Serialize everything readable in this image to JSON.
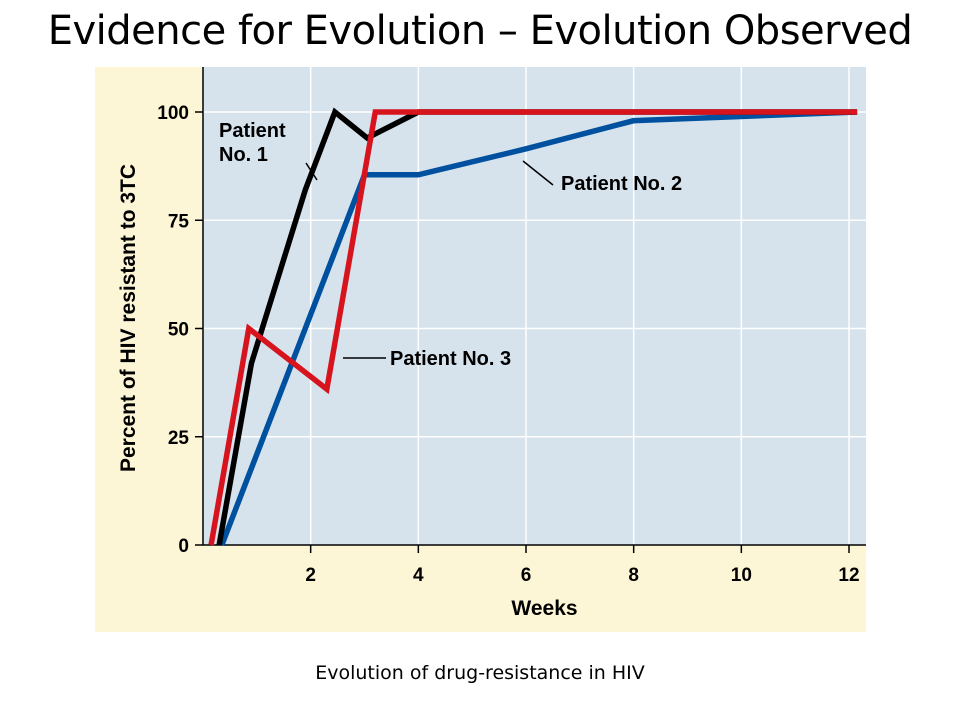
{
  "slide": {
    "title": "Evidence for Evolution – Evolution Observed",
    "caption": "Evolution of drug-resistance in HIV"
  },
  "colors": {
    "panel_bg": "#fdf6d6",
    "plot_bg": "#d6e2ec",
    "grid": "#ffffff",
    "patient1": "#000000",
    "patient2": "#0050a0",
    "patient3": "#d7141e"
  },
  "chart_data": {
    "type": "line",
    "title": "",
    "xlabel": "Weeks",
    "ylabel": "Percent of HIV resistant to 3TC",
    "xlim": [
      0,
      12.3
    ],
    "ylim": [
      0,
      108
    ],
    "xticks": [
      2,
      4,
      6,
      8,
      10,
      12
    ],
    "yticks": [
      0,
      25,
      50,
      75,
      100
    ],
    "grid": true,
    "series": [
      {
        "name": "Patient No. 1",
        "color": "#000000",
        "points": [
          [
            0.3,
            0
          ],
          [
            0.9,
            42
          ],
          [
            1.9,
            82
          ],
          [
            2.45,
            100
          ],
          [
            3.05,
            94
          ],
          [
            4,
            100
          ],
          [
            12.3,
            100
          ]
        ]
      },
      {
        "name": "Patient No. 2",
        "color": "#0050a0",
        "points": [
          [
            0.35,
            0
          ],
          [
            3,
            85.5
          ],
          [
            4,
            85.5
          ],
          [
            6,
            91.5
          ],
          [
            8,
            98
          ],
          [
            12.3,
            100
          ]
        ]
      },
      {
        "name": "Patient No. 3",
        "color": "#d7141e",
        "points": [
          [
            0.15,
            0
          ],
          [
            0.85,
            50
          ],
          [
            2.3,
            36
          ],
          [
            3.2,
            100
          ],
          [
            12.3,
            100
          ]
        ]
      }
    ],
    "annotations": [
      {
        "series": "Patient No. 1",
        "lines": [
          "Patient",
          "No. 1"
        ]
      },
      {
        "series": "Patient No. 2",
        "lines": [
          "Patient No. 2"
        ]
      },
      {
        "series": "Patient No. 3",
        "lines": [
          "Patient No. 3"
        ]
      }
    ]
  }
}
